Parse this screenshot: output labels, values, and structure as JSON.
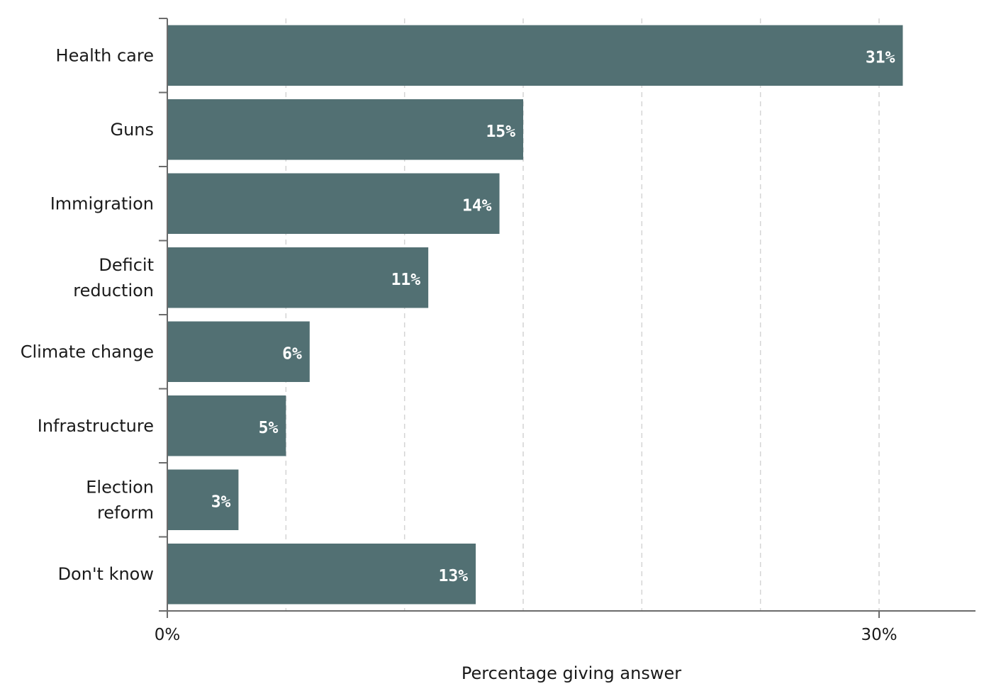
{
  "chart_data": {
    "type": "bar",
    "orientation": "horizontal",
    "categories": [
      [
        "Health care"
      ],
      [
        "Guns"
      ],
      [
        "Immigration"
      ],
      [
        "Deficit",
        "reduction"
      ],
      [
        "Climate change"
      ],
      [
        "Infrastructure"
      ],
      [
        "Election",
        "reform"
      ],
      [
        "Don't know"
      ]
    ],
    "values": [
      31,
      15,
      14,
      11,
      6,
      5,
      3,
      13
    ],
    "value_labels": [
      "31%",
      "15%",
      "14%",
      "11%",
      "6%",
      "5%",
      "3%",
      "13%"
    ],
    "xlabel": "Percentage giving answer",
    "x_ticks": [
      {
        "value": 0,
        "label": "0%"
      },
      {
        "value": 30,
        "label": "30%"
      }
    ],
    "x_gridlines": [
      5,
      10,
      15,
      20,
      25,
      30
    ],
    "xlim": [
      0,
      34
    ],
    "grid": true,
    "colors": {
      "bar": "#527073",
      "grid": "#d4d4d4",
      "axis": "#6b6b6b",
      "value_text": "#ffffff"
    }
  }
}
